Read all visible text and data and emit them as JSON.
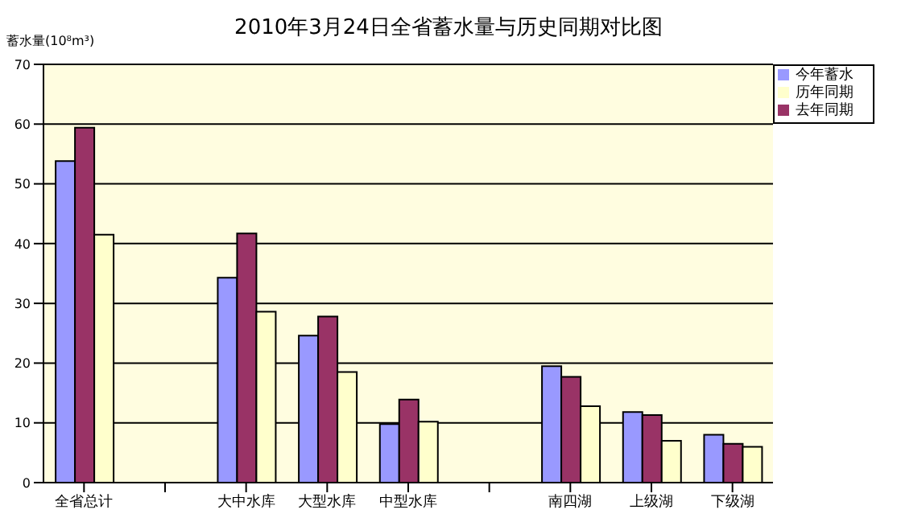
{
  "chart_data": {
    "type": "bar",
    "title": "2010年3月24日全省蓄水量与历史同期对比图",
    "ylabel": "蓄水量(10⁸m³)",
    "categories": [
      "全省总计",
      null,
      "大中水库",
      "大型水库",
      "中型水库",
      null,
      "南四湖",
      "上级湖",
      "下级湖"
    ],
    "series": [
      {
        "name": "今年蓄水",
        "color": "#9999ff",
        "values": [
          53.8,
          null,
          34.3,
          24.6,
          9.8,
          null,
          19.5,
          11.8,
          8.0
        ]
      },
      {
        "name": "去年同期",
        "color": "#993366",
        "values": [
          59.4,
          null,
          41.7,
          27.8,
          13.9,
          null,
          17.7,
          11.3,
          6.5
        ]
      },
      {
        "name": "历年同期",
        "color": "#ffffcc",
        "values": [
          41.5,
          null,
          28.6,
          18.5,
          10.2,
          null,
          12.8,
          7.0,
          6.0
        ]
      }
    ],
    "ylim": [
      0,
      70
    ],
    "yticks": [
      0,
      10,
      20,
      30,
      40,
      50,
      60,
      70
    ],
    "grid": "y",
    "legend": "top right"
  }
}
